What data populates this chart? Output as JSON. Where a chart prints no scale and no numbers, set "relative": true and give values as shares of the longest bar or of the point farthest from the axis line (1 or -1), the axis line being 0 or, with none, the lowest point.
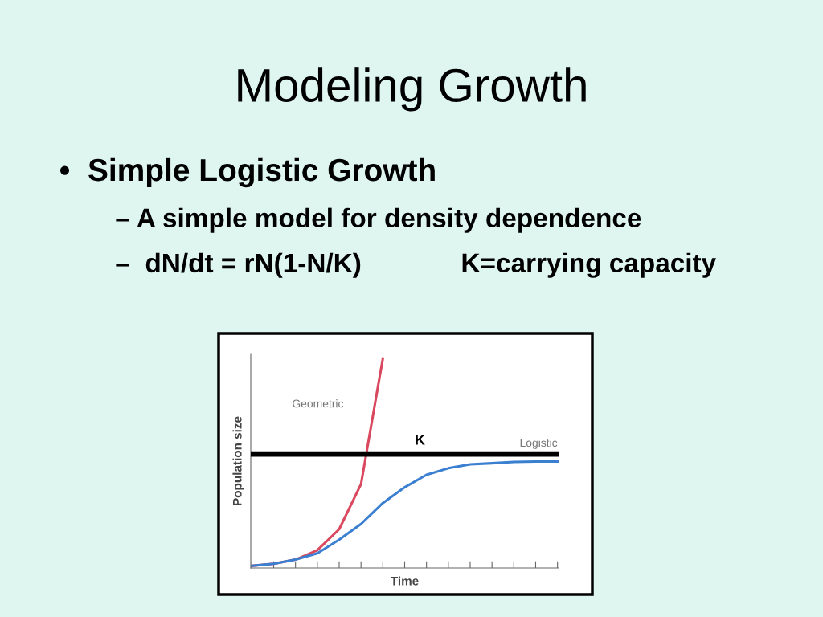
{
  "chart_data": {
    "type": "line",
    "title": "Modeling Growth",
    "xlabel": "Time",
    "ylabel": "Population size",
    "relative": true,
    "annotations": [
      "•  Simple Logistic Growth",
      "– A simple model for density dependence",
      "–  dN/dt = rN(1-N/K)",
      "K=carrying capacity"
    ],
    "categories": [
      null,
      null,
      null,
      null,
      null,
      null,
      null,
      null,
      null,
      null,
      null,
      null,
      null,
      null,
      null
    ],
    "series": [
      {
        "name": "Geometric",
        "color": "#d9485f",
        "values": [
          0.01,
          0.02,
          0.04,
          0.085,
          0.185,
          0.4,
          1.0,
          null,
          null,
          null,
          null,
          null,
          null,
          null,
          null
        ]
      },
      {
        "name": "Logistic",
        "color": "#3a7fd0",
        "values": [
          0.01,
          0.02,
          0.04,
          0.07,
          0.135,
          0.21,
          0.31,
          0.385,
          0.445,
          0.476,
          0.495,
          0.5,
          0.506,
          0.508,
          0.508
        ]
      }
    ],
    "ref_lines": [
      {
        "axis": "y",
        "value": 0.544,
        "label": "K",
        "color": "#000000"
      }
    ],
    "legend": false,
    "grid": false
  }
}
